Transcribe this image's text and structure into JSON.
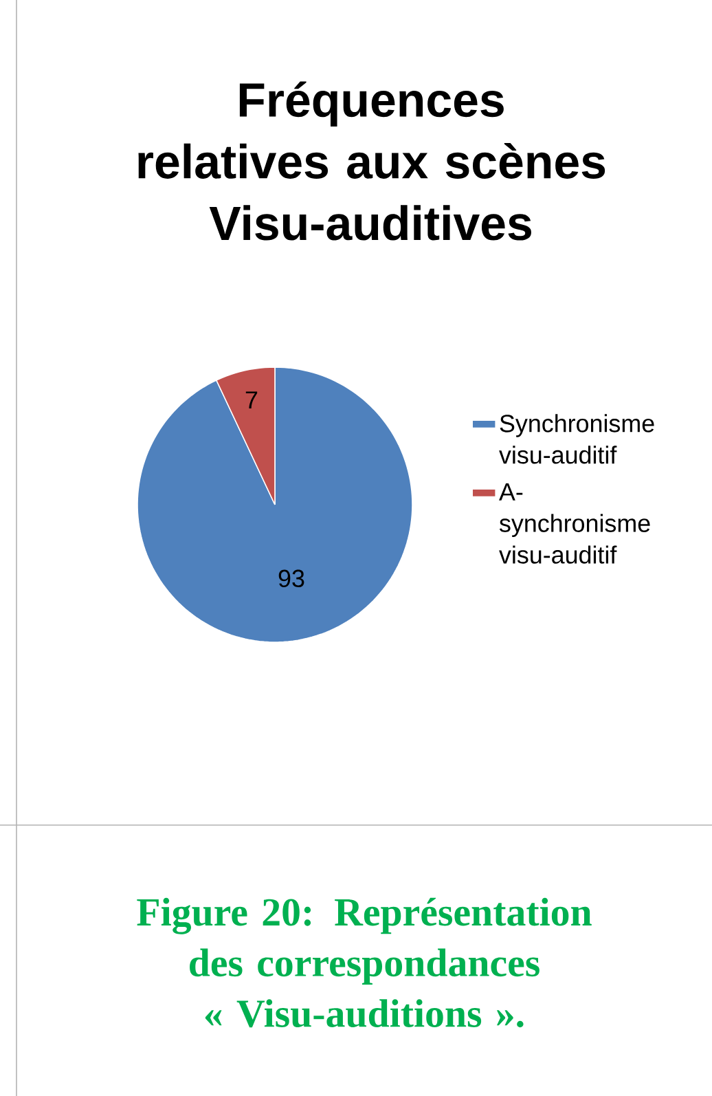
{
  "chart_data": {
    "type": "pie",
    "title": "Fréquences relatives aux scènes Visu-auditives",
    "categories": [
      "Synchronisme visu-auditif",
      "A-synchronisme visu-auditif"
    ],
    "values": [
      93,
      7
    ],
    "colors": [
      "#4f81bd",
      "#c0504d"
    ],
    "data_labels": true,
    "legend": "right",
    "annotations": [
      "Figure 20: Représentation des correspondances « Visu-auditions »."
    ]
  }
}
